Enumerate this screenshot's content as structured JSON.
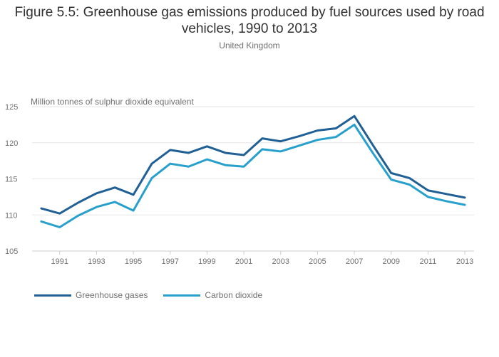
{
  "chart_data": {
    "type": "line",
    "title": "Figure 5.5: Greenhouse gas emissions produced by fuel sources used by road vehicles, 1990 to 2013",
    "subtitle": "United Kingdom",
    "xlabel": "",
    "ylabel": "Million tonnes of sulphur dioxide equivalent",
    "x": [
      1990,
      1991,
      1992,
      1993,
      1994,
      1995,
      1996,
      1997,
      1998,
      1999,
      2000,
      2001,
      2002,
      2003,
      2004,
      2005,
      2006,
      2007,
      2008,
      2009,
      2010,
      2011,
      2012,
      2013
    ],
    "xticks": [
      "1991",
      "1993",
      "1995",
      "1997",
      "1999",
      "2001",
      "2003",
      "2005",
      "2007",
      "2009",
      "2011",
      "2013"
    ],
    "xlim": [
      1989.5,
      2013.5
    ],
    "ylim": [
      105,
      125
    ],
    "yticks": [
      "105",
      "110",
      "115",
      "120",
      "125"
    ],
    "grid": true,
    "legend_position": "bottom-left",
    "series": [
      {
        "name": "Greenhouse gases",
        "color": "#206095",
        "values": [
          110.9,
          110.2,
          111.7,
          113.0,
          113.8,
          112.8,
          117.1,
          119.0,
          118.6,
          119.5,
          118.6,
          118.3,
          120.6,
          120.2,
          120.9,
          121.7,
          122.0,
          123.7,
          119.7,
          115.8,
          115.1,
          113.4,
          112.9,
          112.4
        ]
      },
      {
        "name": "Carbon dioxide",
        "color": "#27A0CC",
        "values": [
          109.1,
          108.3,
          109.9,
          111.1,
          111.8,
          110.6,
          115.1,
          117.1,
          116.7,
          117.7,
          116.9,
          116.7,
          119.1,
          118.8,
          119.6,
          120.4,
          120.8,
          122.5,
          118.6,
          114.9,
          114.2,
          112.5,
          111.9,
          111.4
        ]
      }
    ]
  }
}
